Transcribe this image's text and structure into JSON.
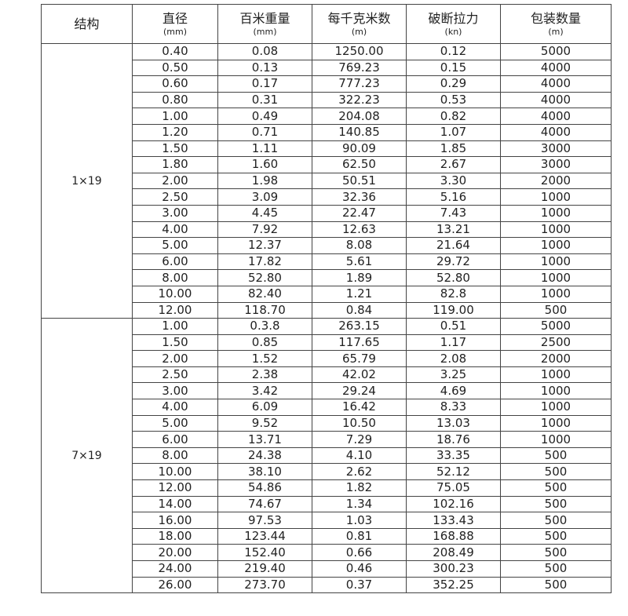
{
  "table": {
    "header": [
      {
        "title": "结构"
      },
      {
        "title": "直径",
        "unit": "(mm)"
      },
      {
        "title": "百米重量",
        "unit": "(mm)"
      },
      {
        "title": "每千克米数",
        "unit": "(m)"
      },
      {
        "title": "破断拉力",
        "unit": "(kn)"
      },
      {
        "title": "包装数量",
        "unit": "(m)"
      }
    ],
    "groups": [
      {
        "structure": "1×19",
        "rows": [
          [
            "0.40",
            "0.08",
            "1250.00",
            "0.12",
            "5000"
          ],
          [
            "0.50",
            "0.13",
            "769.23",
            "0.15",
            "4000"
          ],
          [
            "0.60",
            "0.17",
            "777.23",
            "0.29",
            "4000"
          ],
          [
            "0.80",
            "0.31",
            "322.23",
            "0.53",
            "4000"
          ],
          [
            "1.00",
            "0.49",
            "204.08",
            "0.82",
            "4000"
          ],
          [
            "1.20",
            "0.71",
            "140.85",
            "1.07",
            "4000"
          ],
          [
            "1.50",
            "1.11",
            "90.09",
            "1.85",
            "3000"
          ],
          [
            "1.80",
            "1.60",
            "62.50",
            "2.67",
            "3000"
          ],
          [
            "2.00",
            "1.98",
            "50.51",
            "3.30",
            "2000"
          ],
          [
            "2.50",
            "3.09",
            "32.36",
            "5.16",
            "1000"
          ],
          [
            "3.00",
            "4.45",
            "22.47",
            "7.43",
            "1000"
          ],
          [
            "4.00",
            "7.92",
            "12.63",
            "13.21",
            "1000"
          ],
          [
            "5.00",
            "12.37",
            "8.08",
            "21.64",
            "1000"
          ],
          [
            "6.00",
            "17.82",
            "5.61",
            "29.72",
            "1000"
          ],
          [
            "8.00",
            "52.80",
            "1.89",
            "52.80",
            "1000"
          ],
          [
            "10.00",
            "82.40",
            "1.21",
            "82.8",
            "1000"
          ],
          [
            "12.00",
            "118.70",
            "0.84",
            "119.00",
            "500"
          ]
        ]
      },
      {
        "structure": "7×19",
        "rows": [
          [
            "1.00",
            "0.3.8",
            "263.15",
            "0.51",
            "5000"
          ],
          [
            "1.50",
            "0.85",
            "117.65",
            "1.17",
            "2500"
          ],
          [
            "2.00",
            "1.52",
            "65.79",
            "2.08",
            "2000"
          ],
          [
            "2.50",
            "2.38",
            "42.02",
            "3.25",
            "1000"
          ],
          [
            "3.00",
            "3.42",
            "29.24",
            "4.69",
            "1000"
          ],
          [
            "4.00",
            "6.09",
            "16.42",
            "8.33",
            "1000"
          ],
          [
            "5.00",
            "9.52",
            "10.50",
            "13.03",
            "1000"
          ],
          [
            "6.00",
            "13.71",
            "7.29",
            "18.76",
            "1000"
          ],
          [
            "8.00",
            "24.38",
            "4.10",
            "33.35",
            "500"
          ],
          [
            "10.00",
            "38.10",
            "2.62",
            "52.12",
            "500"
          ],
          [
            "12.00",
            "54.86",
            "1.82",
            "75.05",
            "500"
          ],
          [
            "14.00",
            "74.67",
            "1.34",
            "102.16",
            "500"
          ],
          [
            "16.00",
            "97.53",
            "1.03",
            "133.43",
            "500"
          ],
          [
            "18.00",
            "123.44",
            "0.81",
            "168.88",
            "500"
          ],
          [
            "20.00",
            "152.40",
            "0.66",
            "208.49",
            "500"
          ],
          [
            "24.00",
            "219.40",
            "0.46",
            "300.23",
            "500"
          ],
          [
            "26.00",
            "273.70",
            "0.37",
            "352.25",
            "500"
          ]
        ]
      }
    ]
  }
}
